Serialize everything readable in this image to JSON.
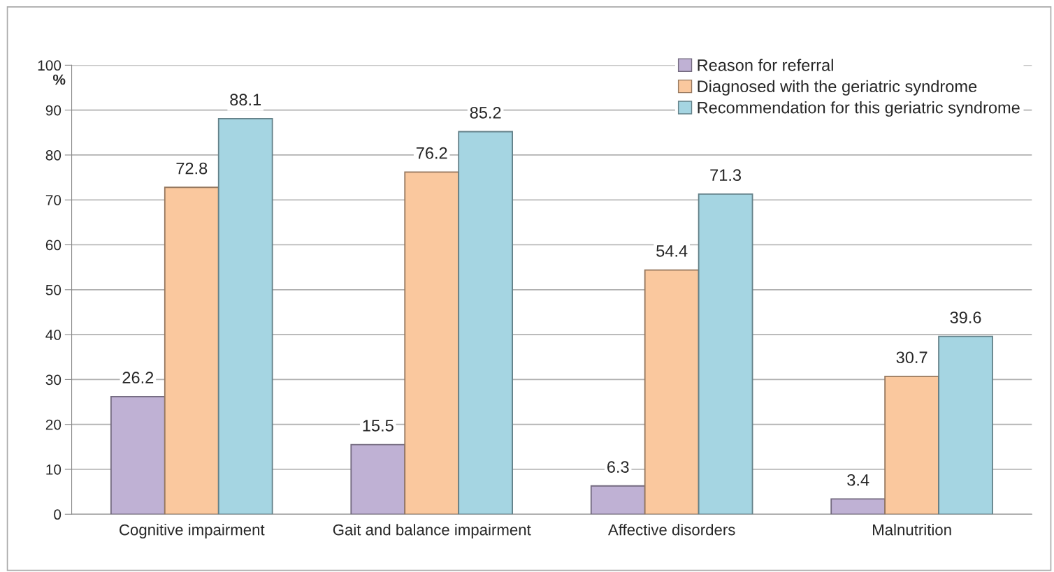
{
  "chart_data": {
    "type": "bar",
    "ylabel": "%",
    "categories": [
      "Cognitive impairment",
      "Gait and balance impairment",
      "Affective disorders",
      "Malnutrition"
    ],
    "series": [
      {
        "name": "Reason for referral",
        "color": "#bfb1d4",
        "values": [
          26.2,
          15.5,
          6.3,
          3.4
        ]
      },
      {
        "name": "Diagnosed with the geriatric syndrome",
        "color": "#fac89e",
        "values": [
          72.8,
          76.2,
          54.4,
          30.7
        ]
      },
      {
        "name": "Recommendation for this geriatric syndrome",
        "color": "#a5d5e2",
        "values": [
          88.1,
          85.2,
          71.3,
          39.6
        ]
      }
    ],
    "ylim": [
      0,
      100
    ],
    "yticks": [
      0,
      10,
      20,
      30,
      40,
      50,
      60,
      70,
      80,
      90,
      100
    ],
    "grid": "y",
    "legend": "top right",
    "data_labels": true
  }
}
